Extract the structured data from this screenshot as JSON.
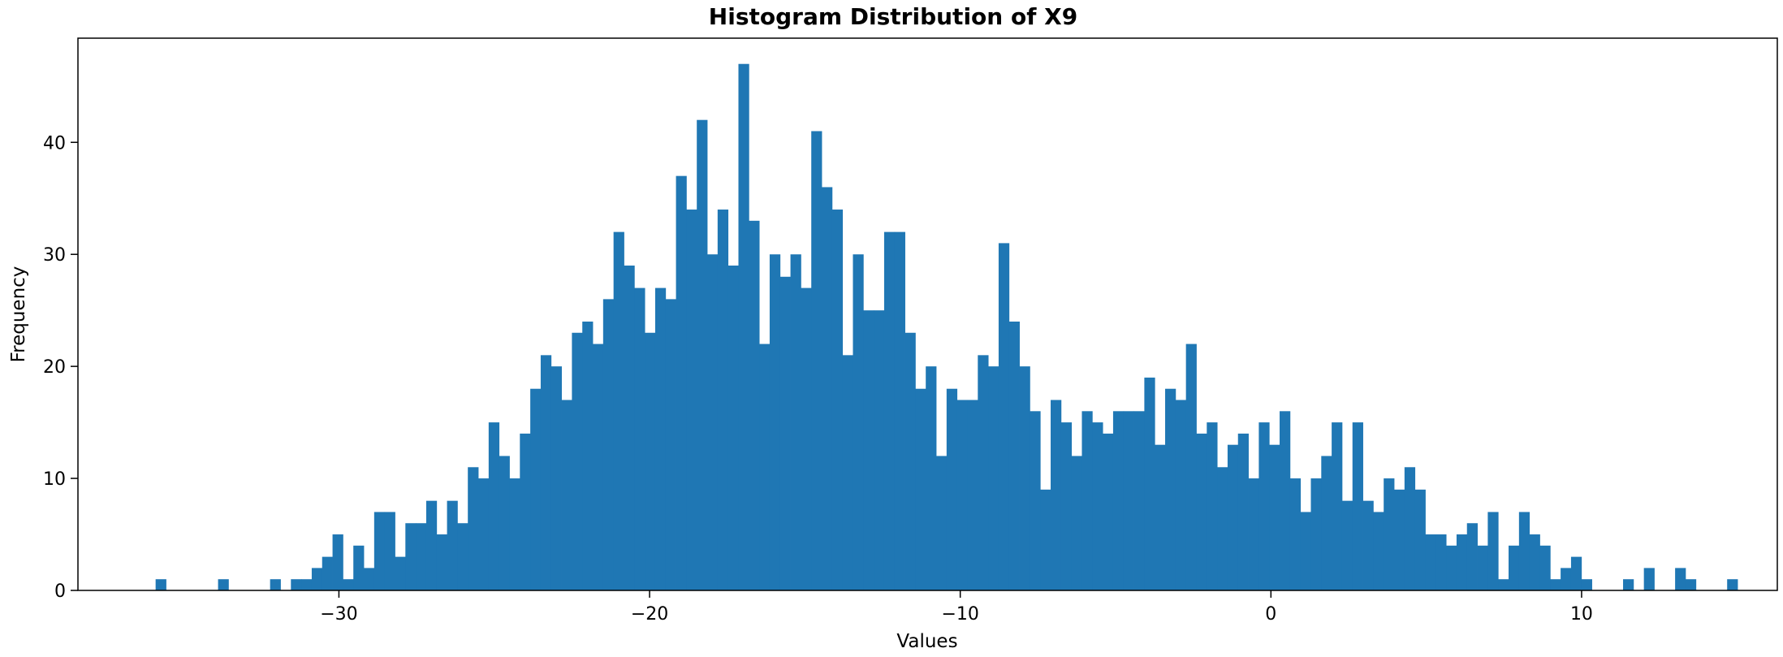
{
  "chart_data": {
    "type": "histogram",
    "title": "Histogram Distribution of X9",
    "xlabel": "Values",
    "ylabel": "Frequency",
    "xlim": [
      -38.4,
      16.3
    ],
    "ylim": [
      0,
      49.3
    ],
    "xticks": [
      -30,
      -20,
      -10,
      0,
      10
    ],
    "xtick_labels": [
      "−30",
      "−20",
      "−10",
      "0",
      "10"
    ],
    "yticks": [
      0,
      10,
      20,
      30,
      40
    ],
    "ytick_labels": [
      "0",
      "10",
      "20",
      "30",
      "40"
    ],
    "bin_start": -35.9,
    "bin_width": 0.335,
    "counts": [
      1,
      0,
      0,
      0,
      0,
      0,
      1,
      0,
      0,
      0,
      0,
      1,
      0,
      1,
      1,
      2,
      3,
      5,
      1,
      4,
      2,
      7,
      7,
      3,
      6,
      6,
      8,
      5,
      8,
      6,
      11,
      10,
      15,
      12,
      10,
      14,
      18,
      21,
      20,
      17,
      23,
      24,
      22,
      26,
      32,
      29,
      27,
      23,
      27,
      26,
      37,
      34,
      42,
      30,
      34,
      29,
      47,
      33,
      22,
      30,
      28,
      30,
      27,
      41,
      36,
      34,
      21,
      30,
      25,
      25,
      32,
      32,
      23,
      18,
      20,
      12,
      18,
      17,
      17,
      21,
      20,
      31,
      24,
      20,
      16,
      9,
      17,
      15,
      12,
      16,
      15,
      14,
      16,
      16,
      16,
      19,
      13,
      18,
      17,
      22,
      14,
      15,
      11,
      13,
      14,
      10,
      15,
      13,
      16,
      10,
      7,
      10,
      12,
      15,
      8,
      15,
      8,
      7,
      10,
      9,
      11,
      9,
      5,
      5,
      4,
      5,
      6,
      4,
      7,
      1,
      4,
      7,
      5,
      4,
      1,
      2,
      3,
      1,
      0,
      0,
      0,
      1,
      0,
      2,
      0,
      0,
      2,
      1,
      0,
      0,
      0,
      1
    ],
    "bar_color": "#1f77b4",
    "grid": false
  }
}
